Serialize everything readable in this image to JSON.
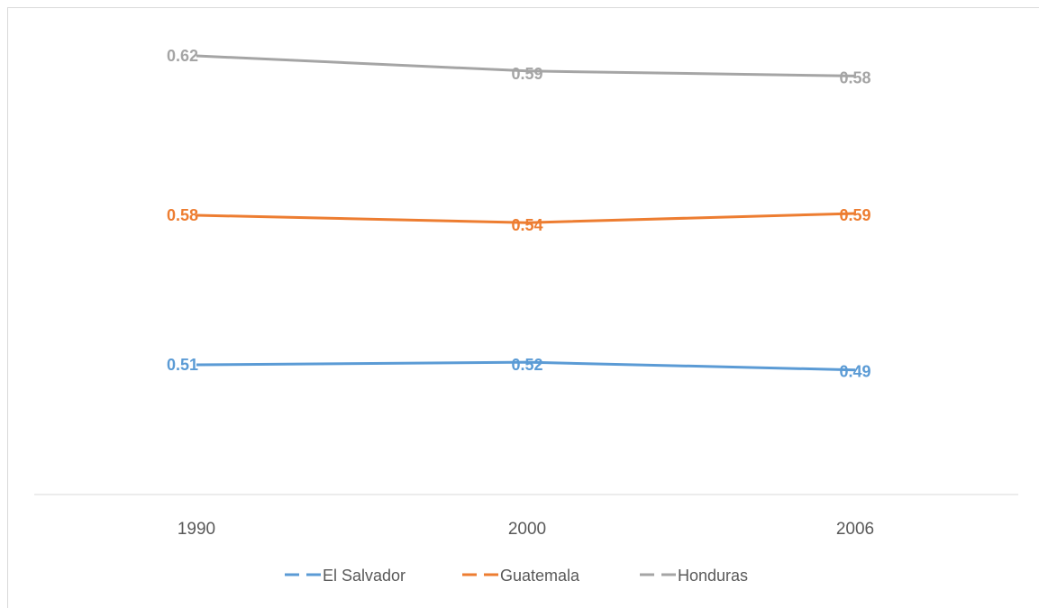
{
  "chart_data": {
    "type": "line",
    "title": "",
    "xlabel": "",
    "ylabel": "",
    "categories": [
      "1990",
      "2000",
      "2006"
    ],
    "series": [
      {
        "name": "El Salvador",
        "color": "#5B9BD5",
        "values": [
          0.51,
          0.52,
          0.49
        ],
        "labels": [
          "0.51",
          "0.52",
          "0.49"
        ]
      },
      {
        "name": "Guatemala",
        "color": "#ED7D31",
        "values": [
          0.58,
          0.54,
          0.59
        ],
        "labels": [
          "0.58",
          "0.54",
          "0.59"
        ]
      },
      {
        "name": "Honduras",
        "color": "#A5A5A5",
        "values": [
          0.62,
          0.59,
          0.58
        ],
        "labels": [
          "0.62",
          "0.59",
          "0.58"
        ]
      }
    ],
    "grid": false,
    "legend_position": "bottom",
    "axis_color": "#d9d9d9"
  }
}
